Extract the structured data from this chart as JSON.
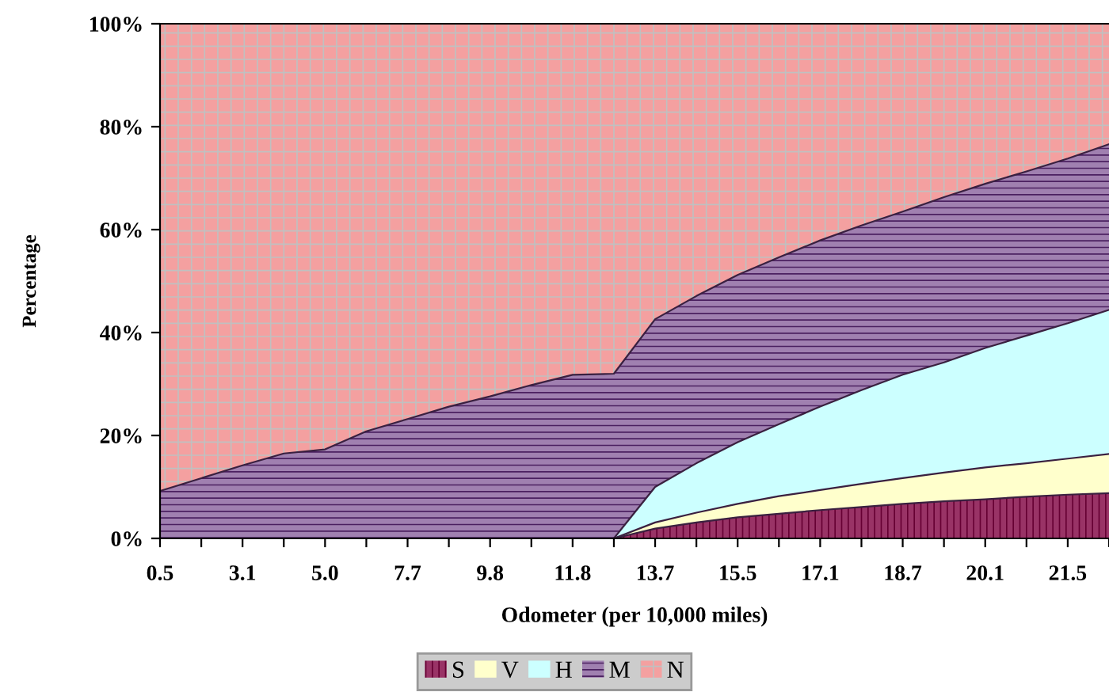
{
  "chart_data": {
    "type": "area",
    "stacked": true,
    "xlabel": "Odometer (per 10,000 miles)",
    "ylabel": "Percentage",
    "categories": [
      "0.5",
      null,
      "3.1",
      null,
      "5.0",
      null,
      "7.7",
      null,
      "9.8",
      null,
      "11.8",
      null,
      "13.7",
      null,
      "15.5",
      null,
      "17.1",
      null,
      "18.7",
      null,
      "20.1",
      null,
      "21.5",
      null
    ],
    "ylim": [
      0,
      100
    ],
    "yticks": [
      {
        "value": 0,
        "label": "0%"
      },
      {
        "value": 20,
        "label": "20%"
      },
      {
        "value": 40,
        "label": "40%"
      },
      {
        "value": 60,
        "label": "60%"
      },
      {
        "value": 80,
        "label": "80%"
      },
      {
        "value": 100,
        "label": "100%"
      }
    ],
    "grid": false,
    "legend": "bottom",
    "series": [
      {
        "name": "S",
        "color": "#993366",
        "values": [
          0,
          0,
          0,
          0,
          0,
          0,
          0,
          0,
          0,
          0,
          0,
          0,
          1.9,
          3.1,
          4.1,
          4.8,
          5.5,
          6.1,
          6.7,
          7.2,
          7.6,
          8.1,
          8.5,
          8.8
        ]
      },
      {
        "name": "V",
        "color": "#ffffcc",
        "values": [
          0,
          0,
          0,
          0,
          0,
          0,
          0,
          0,
          0,
          0,
          0,
          0,
          1.2,
          1.9,
          2.6,
          3.4,
          3.9,
          4.5,
          5.0,
          5.6,
          6.2,
          6.5,
          7.0,
          7.6
        ]
      },
      {
        "name": "H",
        "color": "#ccffff",
        "values": [
          0,
          0,
          0,
          0,
          0,
          0,
          0,
          0,
          0,
          0,
          0,
          0,
          6.9,
          9.6,
          12.0,
          14.0,
          16.2,
          18.2,
          20.1,
          21.4,
          23.2,
          24.8,
          26.3,
          28.0
        ]
      },
      {
        "name": "M",
        "color": "#a080b0",
        "values": [
          9.2,
          11.7,
          14.2,
          16.5,
          17.3,
          20.8,
          23.2,
          25.6,
          27.6,
          29.8,
          31.8,
          32.0,
          32.6,
          32.5,
          32.5,
          32.4,
          32.3,
          32.0,
          31.7,
          32.1,
          31.9,
          31.9,
          32.0,
          32.2
        ]
      },
      {
        "name": "N",
        "color": "#f4a0a0",
        "values": [
          90.8,
          88.3,
          85.8,
          83.5,
          82.7,
          79.2,
          76.8,
          74.4,
          72.4,
          70.2,
          68.2,
          68.0,
          57.4,
          52.9,
          48.8,
          45.4,
          42.1,
          39.2,
          36.5,
          33.7,
          31.1,
          28.7,
          26.2,
          23.4
        ]
      }
    ]
  }
}
